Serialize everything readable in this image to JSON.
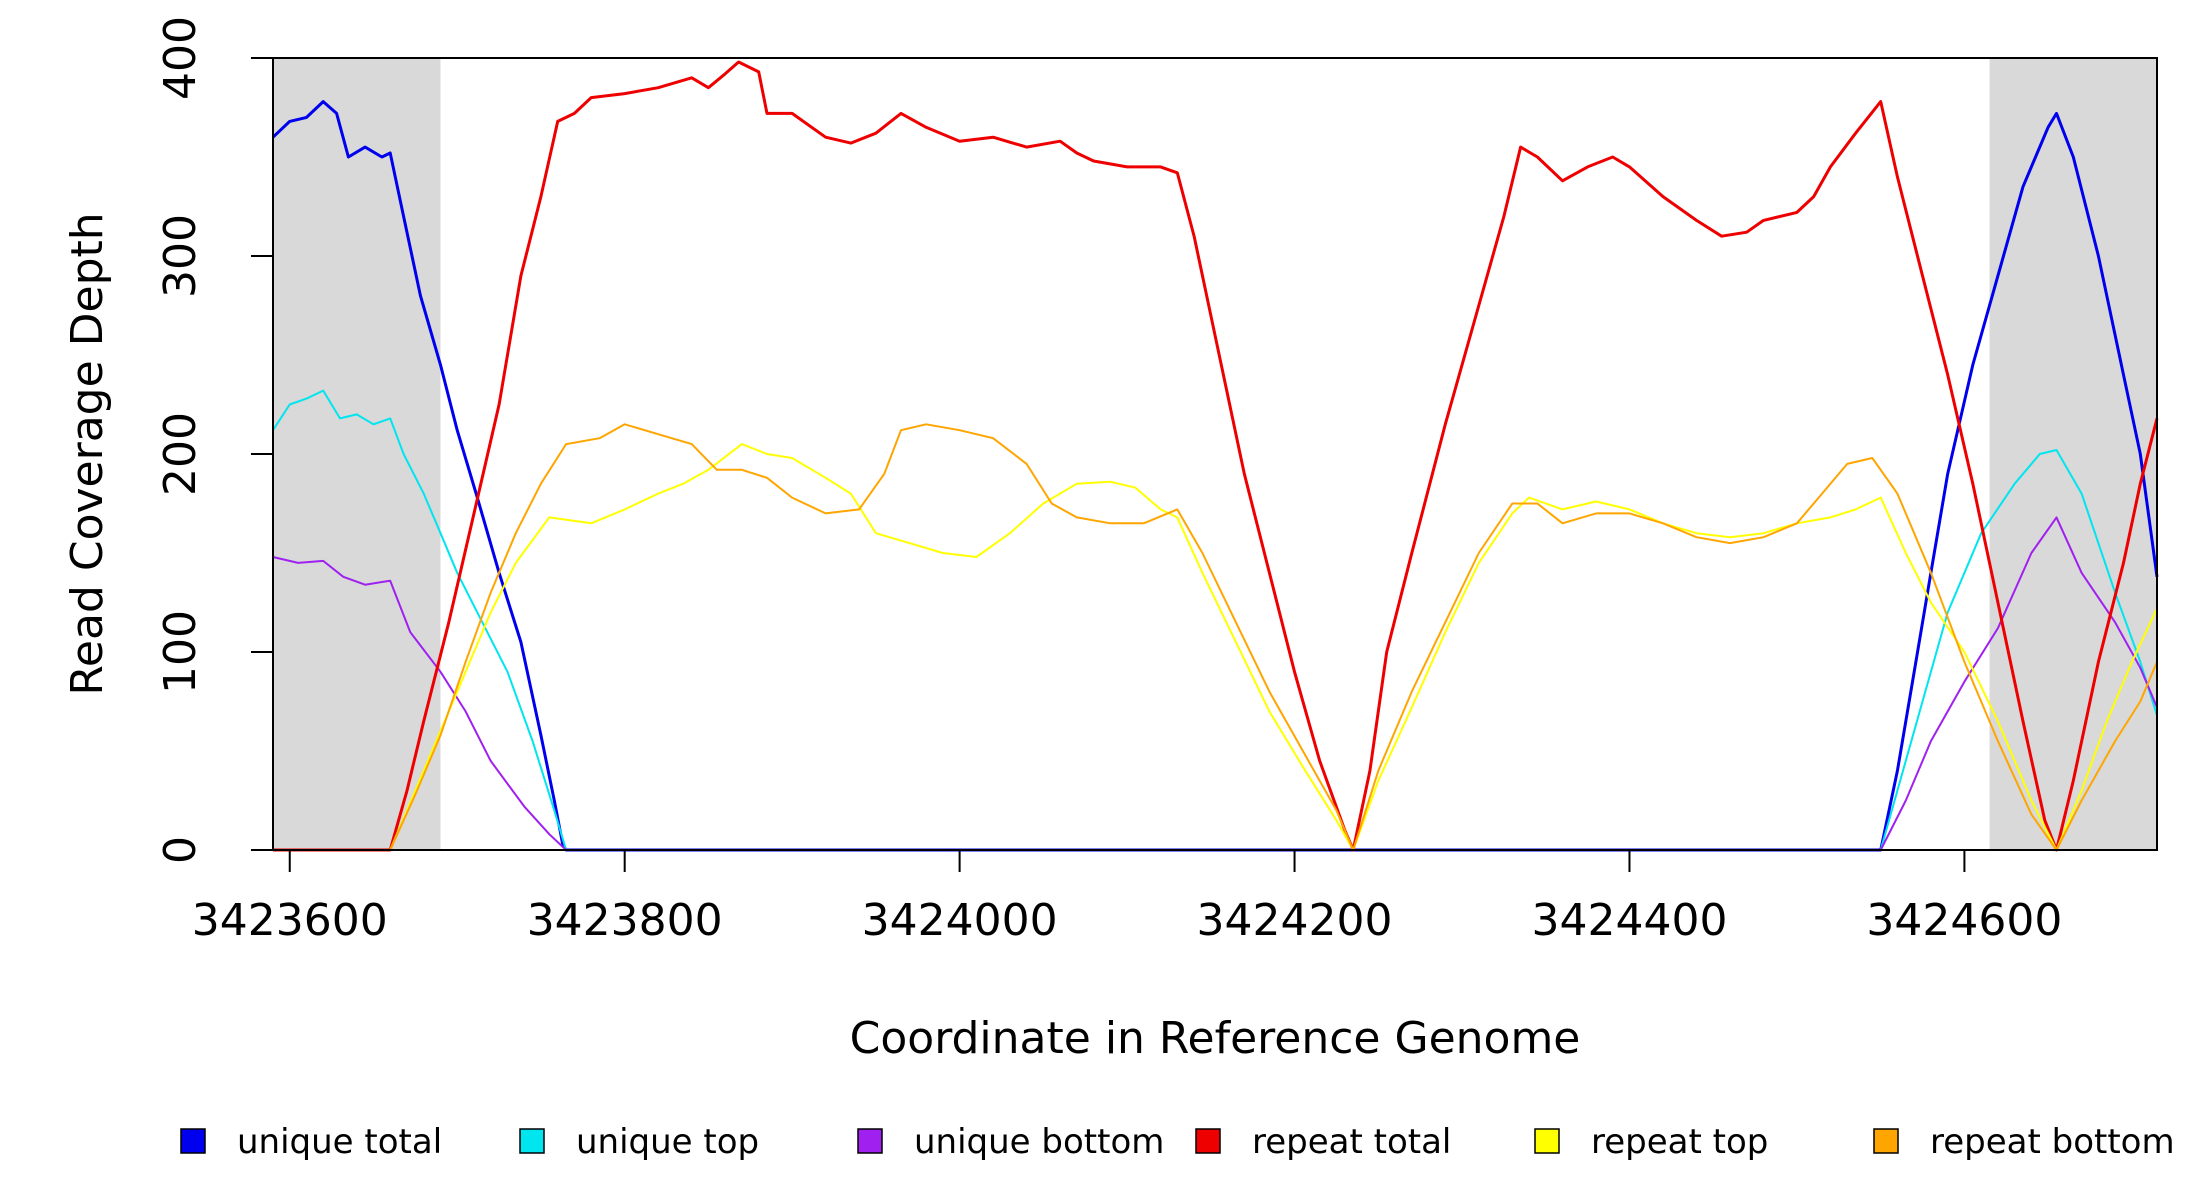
{
  "chart_data": {
    "type": "line",
    "title": "",
    "xlabel": "Coordinate in Reference Genome",
    "ylabel": "Read Coverage Depth",
    "xlim": [
      3423590,
      3424715
    ],
    "ylim": [
      0,
      400
    ],
    "x_ticks": [
      3423600,
      3423800,
      3424000,
      3424200,
      3424400,
      3424600
    ],
    "x_tick_labels": [
      "3423600",
      "3423800",
      "3424000",
      "3424200",
      "3424400",
      "3424600"
    ],
    "y_ticks": [
      0,
      100,
      200,
      300,
      400
    ],
    "y_tick_labels": [
      "0",
      "100",
      "200",
      "300",
      "400"
    ],
    "grid": false,
    "legend_position": "bottom",
    "shaded_regions": [
      {
        "start": 3423590,
        "end": 3423690,
        "color": "#d9d9d9"
      },
      {
        "start": 3424615,
        "end": 3424715,
        "color": "#d9d9d9"
      }
    ],
    "series": [
      {
        "name": "unique total",
        "color": "#0000ee",
        "width": 3,
        "points": [
          [
            3423590,
            360
          ],
          [
            3423600,
            368
          ],
          [
            3423610,
            370
          ],
          [
            3423620,
            378
          ],
          [
            3423628,
            372
          ],
          [
            3423635,
            350
          ],
          [
            3423645,
            355
          ],
          [
            3423655,
            350
          ],
          [
            3423660,
            352
          ],
          [
            3423668,
            320
          ],
          [
            3423678,
            280
          ],
          [
            3423690,
            245
          ],
          [
            3423700,
            212
          ],
          [
            3423712,
            178
          ],
          [
            3423725,
            140
          ],
          [
            3423738,
            105
          ],
          [
            3423750,
            58
          ],
          [
            3423758,
            25
          ],
          [
            3423763,
            3
          ],
          [
            3423765,
            0
          ],
          [
            3424550,
            0
          ],
          [
            3424560,
            40
          ],
          [
            3424570,
            90
          ],
          [
            3424580,
            140
          ],
          [
            3424590,
            190
          ],
          [
            3424605,
            245
          ],
          [
            3424620,
            290
          ],
          [
            3424635,
            335
          ],
          [
            3424650,
            365
          ],
          [
            3424655,
            372
          ],
          [
            3424665,
            350
          ],
          [
            3424680,
            300
          ],
          [
            3424695,
            240
          ],
          [
            3424705,
            200
          ],
          [
            3424715,
            138
          ]
        ]
      },
      {
        "name": "unique top",
        "color": "#00e5ee",
        "width": 2,
        "points": [
          [
            3423590,
            212
          ],
          [
            3423600,
            225
          ],
          [
            3423610,
            228
          ],
          [
            3423620,
            232
          ],
          [
            3423630,
            218
          ],
          [
            3423640,
            220
          ],
          [
            3423650,
            215
          ],
          [
            3423660,
            218
          ],
          [
            3423668,
            200
          ],
          [
            3423680,
            180
          ],
          [
            3423690,
            160
          ],
          [
            3423700,
            140
          ],
          [
            3423715,
            115
          ],
          [
            3423730,
            90
          ],
          [
            3423745,
            55
          ],
          [
            3423758,
            20
          ],
          [
            3423765,
            0
          ],
          [
            3424550,
            0
          ],
          [
            3424560,
            30
          ],
          [
            3424575,
            75
          ],
          [
            3424590,
            120
          ],
          [
            3424610,
            160
          ],
          [
            3424630,
            185
          ],
          [
            3424645,
            200
          ],
          [
            3424655,
            202
          ],
          [
            3424670,
            180
          ],
          [
            3424690,
            130
          ],
          [
            3424705,
            95
          ],
          [
            3424715,
            68
          ]
        ]
      },
      {
        "name": "unique bottom",
        "color": "#a020f0",
        "width": 2,
        "points": [
          [
            3423590,
            148
          ],
          [
            3423605,
            145
          ],
          [
            3423620,
            146
          ],
          [
            3423632,
            138
          ],
          [
            3423645,
            134
          ],
          [
            3423660,
            136
          ],
          [
            3423672,
            110
          ],
          [
            3423690,
            90
          ],
          [
            3423705,
            70
          ],
          [
            3423720,
            45
          ],
          [
            3423740,
            22
          ],
          [
            3423755,
            8
          ],
          [
            3423765,
            0
          ],
          [
            3424550,
            0
          ],
          [
            3424565,
            25
          ],
          [
            3424580,
            55
          ],
          [
            3424600,
            85
          ],
          [
            3424620,
            112
          ],
          [
            3424640,
            150
          ],
          [
            3424655,
            168
          ],
          [
            3424670,
            140
          ],
          [
            3424690,
            115
          ],
          [
            3424705,
            92
          ],
          [
            3424715,
            72
          ]
        ]
      },
      {
        "name": "repeat total",
        "color": "#ee0000",
        "width": 3,
        "points": [
          [
            3423590,
            0
          ],
          [
            3423660,
            0
          ],
          [
            3423670,
            30
          ],
          [
            3423680,
            65
          ],
          [
            3423695,
            115
          ],
          [
            3423710,
            170
          ],
          [
            3423725,
            225
          ],
          [
            3423738,
            290
          ],
          [
            3423750,
            330
          ],
          [
            3423760,
            368
          ],
          [
            3423770,
            372
          ],
          [
            3423780,
            380
          ],
          [
            3423800,
            382
          ],
          [
            3423820,
            385
          ],
          [
            3423840,
            390
          ],
          [
            3423850,
            385
          ],
          [
            3423860,
            392
          ],
          [
            3423868,
            398
          ],
          [
            3423880,
            393
          ],
          [
            3423885,
            372
          ],
          [
            3423900,
            372
          ],
          [
            3423920,
            360
          ],
          [
            3423935,
            357
          ],
          [
            3423950,
            362
          ],
          [
            3423965,
            372
          ],
          [
            3423980,
            365
          ],
          [
            3424000,
            358
          ],
          [
            3424020,
            360
          ],
          [
            3424040,
            355
          ],
          [
            3424060,
            358
          ],
          [
            3424070,
            352
          ],
          [
            3424080,
            348
          ],
          [
            3424100,
            345
          ],
          [
            3424120,
            345
          ],
          [
            3424130,
            342
          ],
          [
            3424140,
            310
          ],
          [
            3424155,
            250
          ],
          [
            3424170,
            190
          ],
          [
            3424185,
            140
          ],
          [
            3424200,
            90
          ],
          [
            3424215,
            45
          ],
          [
            3424230,
            10
          ],
          [
            3424235,
            0
          ],
          [
            3424245,
            40
          ],
          [
            3424255,
            100
          ],
          [
            3424270,
            150
          ],
          [
            3424290,
            215
          ],
          [
            3424310,
            275
          ],
          [
            3424325,
            320
          ],
          [
            3424335,
            355
          ],
          [
            3424345,
            350
          ],
          [
            3424360,
            338
          ],
          [
            3424375,
            345
          ],
          [
            3424390,
            350
          ],
          [
            3424400,
            345
          ],
          [
            3424420,
            330
          ],
          [
            3424440,
            318
          ],
          [
            3424455,
            310
          ],
          [
            3424470,
            312
          ],
          [
            3424480,
            318
          ],
          [
            3424500,
            322
          ],
          [
            3424510,
            330
          ],
          [
            3424520,
            345
          ],
          [
            3424535,
            362
          ],
          [
            3424550,
            378
          ],
          [
            3424560,
            340
          ],
          [
            3424575,
            290
          ],
          [
            3424590,
            240
          ],
          [
            3424605,
            185
          ],
          [
            3424620,
            125
          ],
          [
            3424635,
            65
          ],
          [
            3424648,
            15
          ],
          [
            3424655,
            0
          ],
          [
            3424665,
            35
          ],
          [
            3424680,
            95
          ],
          [
            3424695,
            145
          ],
          [
            3424705,
            185
          ],
          [
            3424715,
            218
          ]
        ]
      },
      {
        "name": "repeat top",
        "color": "#ffff00",
        "width": 2,
        "points": [
          [
            3423590,
            0
          ],
          [
            3423660,
            0
          ],
          [
            3423675,
            30
          ],
          [
            3423690,
            60
          ],
          [
            3423705,
            90
          ],
          [
            3423720,
            120
          ],
          [
            3423735,
            145
          ],
          [
            3423755,
            168
          ],
          [
            3423780,
            165
          ],
          [
            3423800,
            172
          ],
          [
            3423820,
            180
          ],
          [
            3423835,
            185
          ],
          [
            3423850,
            192
          ],
          [
            3423870,
            205
          ],
          [
            3423885,
            200
          ],
          [
            3423900,
            198
          ],
          [
            3423920,
            188
          ],
          [
            3423935,
            180
          ],
          [
            3423950,
            160
          ],
          [
            3423970,
            155
          ],
          [
            3423990,
            150
          ],
          [
            3424010,
            148
          ],
          [
            3424030,
            160
          ],
          [
            3424050,
            175
          ],
          [
            3424070,
            185
          ],
          [
            3424090,
            186
          ],
          [
            3424105,
            183
          ],
          [
            3424120,
            172
          ],
          [
            3424130,
            168
          ],
          [
            3424145,
            140
          ],
          [
            3424165,
            105
          ],
          [
            3424185,
            70
          ],
          [
            3424205,
            42
          ],
          [
            3424225,
            15
          ],
          [
            3424235,
            0
          ],
          [
            3424250,
            35
          ],
          [
            3424270,
            72
          ],
          [
            3424290,
            110
          ],
          [
            3424310,
            145
          ],
          [
            3424330,
            170
          ],
          [
            3424340,
            178
          ],
          [
            3424360,
            172
          ],
          [
            3424380,
            176
          ],
          [
            3424400,
            172
          ],
          [
            3424420,
            165
          ],
          [
            3424440,
            160
          ],
          [
            3424460,
            158
          ],
          [
            3424480,
            160
          ],
          [
            3424500,
            165
          ],
          [
            3424520,
            168
          ],
          [
            3424535,
            172
          ],
          [
            3424550,
            178
          ],
          [
            3424565,
            150
          ],
          [
            3424580,
            125
          ],
          [
            3424600,
            100
          ],
          [
            3424620,
            65
          ],
          [
            3424640,
            25
          ],
          [
            3424655,
            0
          ],
          [
            3424670,
            30
          ],
          [
            3424685,
            65
          ],
          [
            3424700,
            95
          ],
          [
            3424715,
            122
          ]
        ]
      },
      {
        "name": "repeat bottom",
        "color": "#ffa500",
        "width": 2,
        "points": [
          [
            3423590,
            0
          ],
          [
            3423660,
            0
          ],
          [
            3423675,
            28
          ],
          [
            3423690,
            58
          ],
          [
            3423705,
            95
          ],
          [
            3423720,
            130
          ],
          [
            3423735,
            160
          ],
          [
            3423750,
            185
          ],
          [
            3423765,
            205
          ],
          [
            3423785,
            208
          ],
          [
            3423800,
            215
          ],
          [
            3423820,
            210
          ],
          [
            3423840,
            205
          ],
          [
            3423855,
            192
          ],
          [
            3423870,
            192
          ],
          [
            3423885,
            188
          ],
          [
            3423900,
            178
          ],
          [
            3423920,
            170
          ],
          [
            3423940,
            172
          ],
          [
            3423955,
            190
          ],
          [
            3423965,
            212
          ],
          [
            3423980,
            215
          ],
          [
            3424000,
            212
          ],
          [
            3424020,
            208
          ],
          [
            3424040,
            195
          ],
          [
            3424055,
            175
          ],
          [
            3424070,
            168
          ],
          [
            3424090,
            165
          ],
          [
            3424110,
            165
          ],
          [
            3424130,
            172
          ],
          [
            3424145,
            150
          ],
          [
            3424165,
            115
          ],
          [
            3424185,
            80
          ],
          [
            3424205,
            50
          ],
          [
            3424225,
            20
          ],
          [
            3424235,
            0
          ],
          [
            3424250,
            40
          ],
          [
            3424270,
            80
          ],
          [
            3424290,
            115
          ],
          [
            3424310,
            150
          ],
          [
            3424330,
            175
          ],
          [
            3424345,
            175
          ],
          [
            3424360,
            165
          ],
          [
            3424380,
            170
          ],
          [
            3424400,
            170
          ],
          [
            3424420,
            165
          ],
          [
            3424440,
            158
          ],
          [
            3424460,
            155
          ],
          [
            3424480,
            158
          ],
          [
            3424500,
            165
          ],
          [
            3424515,
            180
          ],
          [
            3424530,
            195
          ],
          [
            3424545,
            198
          ],
          [
            3424560,
            180
          ],
          [
            3424580,
            140
          ],
          [
            3424600,
            95
          ],
          [
            3424620,
            55
          ],
          [
            3424640,
            18
          ],
          [
            3424655,
            0
          ],
          [
            3424670,
            25
          ],
          [
            3424690,
            55
          ],
          [
            3424705,
            75
          ],
          [
            3424715,
            95
          ]
        ]
      }
    ]
  }
}
